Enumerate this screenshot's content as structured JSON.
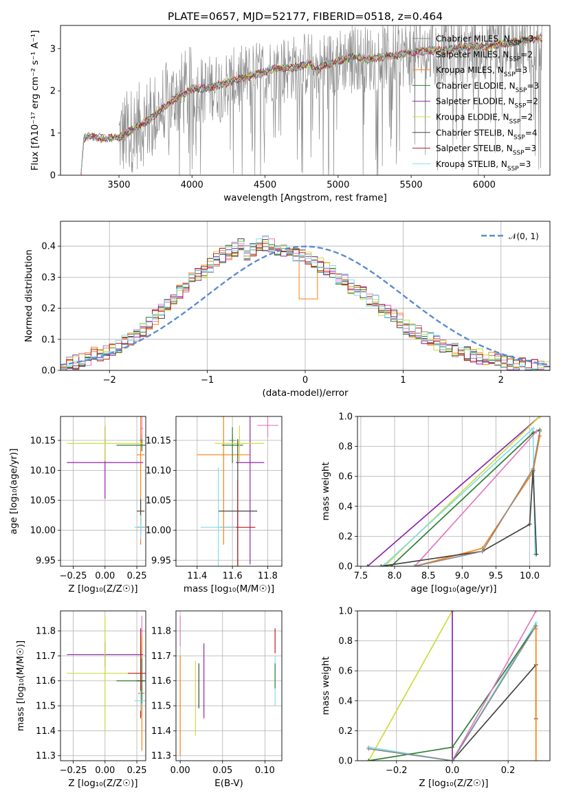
{
  "colors": {
    "chabrier_miles": "#8c8c8c",
    "salpeter_miles": "#e377c2",
    "kroupa_miles": "#ff7f0e",
    "chabrier_elodie": "#2e7d32",
    "salpeter_elodie": "#8e24aa",
    "kroupa_elodie": "#cddc39",
    "chabrier_stelib": "#424242",
    "salpeter_stelib": "#b71c1c",
    "kroupa_stelib": "#80deea",
    "normal": "#5b8bd0"
  },
  "chart_data": [
    {
      "type": "line",
      "id": "spectrum",
      "title": "PLATE=0657, MJD=52177, FIBERID=0518, z=0.464",
      "xlabel": "wavelength [Angstrom, rest frame]",
      "ylabel": "Flux [fλ10⁻¹⁷ erg cm⁻² s⁻¹ A⁻¹]",
      "xlim": [
        3100,
        6450
      ],
      "ylim": [
        0,
        3.55
      ],
      "xticks": [
        "3500",
        "4000",
        "4500",
        "5000",
        "5500",
        "6000"
      ],
      "yticks": [
        "0",
        "1",
        "2",
        "3"
      ],
      "legend_position": "upper-right",
      "legend": [
        {
          "key": "chabrier_miles",
          "name": "Chabrier MILES, N",
          "sub": "SSP",
          "tail": "=3"
        },
        {
          "key": "salpeter_miles",
          "name": "Salpeter MILES, N",
          "sub": "SSP",
          "tail": "=2"
        },
        {
          "key": "kroupa_miles",
          "name": "Kroupa MILES, N",
          "sub": "SSP",
          "tail": "=3"
        },
        {
          "key": "chabrier_elodie",
          "name": "Chabrier ELODIE, N",
          "sub": "SSP",
          "tail": "=3"
        },
        {
          "key": "salpeter_elodie",
          "name": "Salpeter ELODIE, N",
          "sub": "SSP",
          "tail": "=2"
        },
        {
          "key": "kroupa_elodie",
          "name": "Kroupa ELODIE, N",
          "sub": "SSP",
          "tail": "=2"
        },
        {
          "key": "chabrier_stelib",
          "name": "Chabrier STELIB, N",
          "sub": "SSP",
          "tail": "=4"
        },
        {
          "key": "salpeter_stelib",
          "name": "Salpeter STELIB, N",
          "sub": "SSP",
          "tail": "=3"
        },
        {
          "key": "kroupa_stelib",
          "name": "Kroupa STELIB, N",
          "sub": "SSP",
          "tail": "=3"
        }
      ],
      "model_continuum": {
        "x": [
          3240,
          3260,
          3300,
          3350,
          3400,
          3450,
          3500,
          3600,
          3700,
          3800,
          3900,
          3950,
          4000,
          4100,
          4200,
          4300,
          4400,
          4500,
          4600,
          4700,
          4800,
          4860,
          4900,
          5000,
          5100,
          5200,
          5300,
          5400,
          5500,
          5600,
          5700,
          5800,
          5900,
          6000,
          6100,
          6200,
          6300,
          6400
        ],
        "y": [
          0.05,
          0.88,
          0.92,
          0.9,
          0.86,
          0.88,
          0.9,
          1.1,
          1.3,
          1.6,
          1.85,
          1.95,
          2.05,
          2.05,
          2.15,
          2.25,
          2.35,
          2.45,
          2.55,
          2.55,
          2.65,
          2.5,
          2.6,
          2.7,
          2.8,
          2.75,
          2.8,
          2.85,
          2.9,
          2.95,
          2.95,
          3.0,
          3.05,
          3.05,
          3.1,
          3.15,
          3.2,
          3.25
        ]
      },
      "observed_range": [
        3500,
        6400
      ]
    },
    {
      "type": "line",
      "id": "residuals",
      "xlabel": "(data-model)/error",
      "ylabel": "Normed distribution",
      "xlim": [
        -2.5,
        2.5
      ],
      "ylim": [
        0,
        0.48
      ],
      "xticks": [
        "−2",
        "−1",
        "0",
        "1",
        "2"
      ],
      "yticks": [
        "0.0",
        "0.1",
        "0.2",
        "0.3",
        "0.4"
      ],
      "legend_position": "upper-right",
      "normal_label": "𝒩(0, 1)",
      "bin_width": 0.1,
      "hist_base": [
        0.015,
        0.02,
        0.025,
        0.035,
        0.04,
        0.05,
        0.055,
        0.06,
        0.07,
        0.08,
        0.09,
        0.1,
        0.115,
        0.13,
        0.15,
        0.17,
        0.19,
        0.21,
        0.23,
        0.25,
        0.27,
        0.29,
        0.31,
        0.32,
        0.34,
        0.36,
        0.37,
        0.38,
        0.39,
        0.4,
        0.38,
        0.39,
        0.4,
        0.41,
        0.4,
        0.39,
        0.39,
        0.38,
        0.37,
        0.37,
        0.36,
        0.35,
        0.34,
        0.33,
        0.32,
        0.3,
        0.29,
        0.27,
        0.26,
        0.25,
        0.23,
        0.22,
        0.2,
        0.19,
        0.17,
        0.16,
        0.14,
        0.13,
        0.12,
        0.11,
        0.1,
        0.09,
        0.08,
        0.07,
        0.065,
        0.06,
        0.055,
        0.05,
        0.045,
        0.04,
        0.035,
        0.03,
        0.03,
        0.025,
        0.02,
        0.02,
        0.015,
        0.015,
        0.01,
        0.01
      ]
    },
    {
      "type": "scatter",
      "id": "age_vs_Z",
      "xlabel": "Z [log₁₀(Z/Z☉)]",
      "ylabel": "age  [log₁₀(age/yr)]",
      "xlim": [
        -0.35,
        0.32
      ],
      "ylim": [
        9.94,
        10.19
      ],
      "xticks": [
        "−0.25",
        "0.00",
        "0.25"
      ],
      "yticks": [
        "9.95",
        "10.00",
        "10.05",
        "10.10",
        "10.15"
      ],
      "points": [
        {
          "key": "chabrier_miles",
          "x": 0.28,
          "y": 10.15,
          "xerr": 0.01,
          "yerr": 0.01
        },
        {
          "key": "salpeter_miles",
          "x": 0.29,
          "y": 10.17,
          "xerr": 0.01,
          "yerr": 0.02
        },
        {
          "key": "kroupa_miles",
          "x": 0.28,
          "y": 10.126,
          "xerr": 0.03,
          "yerr": 0.15
        },
        {
          "key": "chabrier_elodie",
          "x": 0.29,
          "y": 10.142,
          "xerr": 0.2,
          "yerr": 0.01
        },
        {
          "key": "salpeter_elodie",
          "x": 0.0,
          "y": 10.113,
          "xerr": 0.3,
          "yerr": 0.06
        },
        {
          "key": "kroupa_elodie",
          "x": 0.0,
          "y": 10.145,
          "xerr": 0.3,
          "yerr": 0.03
        },
        {
          "key": "chabrier_stelib",
          "x": 0.28,
          "y": 10.032,
          "xerr": 0.03,
          "yerr": 0.02
        },
        {
          "key": "salpeter_stelib",
          "x": 0.28,
          "y": 10.005,
          "xerr": 0.03,
          "yerr": 0.01
        },
        {
          "key": "kroupa_stelib",
          "x": 0.28,
          "y": 10.005,
          "xerr": 0.05,
          "yerr": 0.02
        }
      ]
    },
    {
      "type": "scatter",
      "id": "age_vs_mass",
      "xlabel": "mass [log₁₀(M/M☉)]",
      "ylabel": "",
      "xlim": [
        11.28,
        11.88
      ],
      "ylim": [
        9.94,
        10.19
      ],
      "xticks": [
        "11.4",
        "11.6",
        "11.8"
      ],
      "yticks": [
        "9.95",
        "10.00",
        "10.05",
        "10.10",
        "10.15"
      ],
      "points": [
        {
          "key": "chabrier_miles",
          "x": 11.6,
          "y": 10.15,
          "xerr": 0.02,
          "yerr": 0.01
        },
        {
          "key": "salpeter_miles",
          "x": 11.8,
          "y": 10.175,
          "xerr": 0.06,
          "yerr": 0.02
        },
        {
          "key": "kroupa_miles",
          "x": 11.55,
          "y": 10.126,
          "xerr": 0.15,
          "yerr": 0.15
        },
        {
          "key": "chabrier_elodie",
          "x": 11.6,
          "y": 10.142,
          "xerr": 0.06,
          "yerr": 0.03
        },
        {
          "key": "salpeter_elodie",
          "x": 11.7,
          "y": 10.113,
          "xerr": 0.08,
          "yerr": 0.17
        },
        {
          "key": "kroupa_elodie",
          "x": 11.64,
          "y": 10.145,
          "xerr": 0.14,
          "yerr": 0.03
        },
        {
          "key": "chabrier_stelib",
          "x": 11.63,
          "y": 10.032,
          "xerr": 0.11,
          "yerr": 0.12
        },
        {
          "key": "salpeter_stelib",
          "x": 11.63,
          "y": 10.005,
          "xerr": 0.1,
          "yerr": 0.08
        },
        {
          "key": "kroupa_stelib",
          "x": 11.52,
          "y": 10.005,
          "xerr": 0.1,
          "yerr": 0.1
        }
      ]
    },
    {
      "type": "line",
      "id": "weight_vs_age",
      "xlabel": "age  [log₁₀(age/yr)]",
      "ylabel": "mass weight",
      "xlim": [
        7.45,
        10.3
      ],
      "ylim": [
        0,
        1.0
      ],
      "xticks": [
        "7.5",
        "8.0",
        "8.5",
        "9.0",
        "9.5",
        "10.0"
      ],
      "yticks": [
        "0.0",
        "0.2",
        "0.4",
        "0.6",
        "0.8",
        "1.0"
      ],
      "series": [
        {
          "key": "salpeter_elodie",
          "x": [
            7.6,
            10.15
          ],
          "y": [
            0.0,
            1.0
          ]
        },
        {
          "key": "kroupa_elodie",
          "x": [
            7.85,
            10.15
          ],
          "y": [
            0.0,
            1.0
          ]
        },
        {
          "key": "kroupa_stelib",
          "x": [
            7.85,
            10.05,
            10.08
          ],
          "y": [
            0.01,
            0.92,
            0.08
          ]
        },
        {
          "key": "chabrier_elodie",
          "x": [
            7.95,
            10.05,
            10.15
          ],
          "y": [
            0.0,
            0.89,
            0.91
          ]
        },
        {
          "key": "salpeter_miles",
          "x": [
            8.3,
            10.1
          ],
          "y": [
            0.0,
            0.9
          ]
        },
        {
          "key": "kroupa_miles",
          "x": [
            8.3,
            9.3,
            10.05,
            10.15
          ],
          "y": [
            0.0,
            0.12,
            0.63,
            0.87
          ]
        },
        {
          "key": "chabrier_stelib",
          "x": [
            7.8,
            9.3,
            10.0,
            10.05,
            10.1
          ],
          "y": [
            0.0,
            0.1,
            0.28,
            0.64,
            0.08
          ]
        },
        {
          "key": "chabrier_miles",
          "x": [
            8.3,
            9.3,
            10.05,
            10.15
          ],
          "y": [
            0.0,
            0.1,
            0.65,
            0.9
          ]
        }
      ]
    },
    {
      "type": "scatter",
      "id": "mass_vs_Z",
      "xlabel": "Z [log₁₀(Z/Z☉)]",
      "ylabel": "mass [log₁₀(M/M☉)]",
      "xlim": [
        -0.35,
        0.32
      ],
      "ylim": [
        11.28,
        11.88
      ],
      "xticks": [
        "−0.25",
        "0.00",
        "0.25"
      ],
      "yticks": [
        "11.3",
        "11.4",
        "11.5",
        "11.6",
        "11.7",
        "11.8"
      ],
      "points": [
        {
          "key": "chabrier_miles",
          "x": 0.28,
          "y": 11.55,
          "xerr": 0.02,
          "yerr": 0.03
        },
        {
          "key": "salpeter_miles",
          "x": 0.29,
          "y": 11.8,
          "xerr": 0.01,
          "yerr": 0.06
        },
        {
          "key": "kroupa_miles",
          "x": 0.29,
          "y": 11.55,
          "xerr": 0.02,
          "yerr": 0.23
        },
        {
          "key": "chabrier_elodie",
          "x": 0.29,
          "y": 11.6,
          "xerr": 0.2,
          "yerr": 0.09
        },
        {
          "key": "salpeter_elodie",
          "x": 0.0,
          "y": 11.705,
          "xerr": 0.3,
          "yerr": 0.05
        },
        {
          "key": "kroupa_elodie",
          "x": 0.0,
          "y": 11.63,
          "xerr": 0.3,
          "yerr": 0.23
        },
        {
          "key": "chabrier_stelib",
          "x": 0.28,
          "y": 11.6,
          "xerr": 0.03,
          "yerr": 0.14
        },
        {
          "key": "salpeter_stelib",
          "x": 0.28,
          "y": 11.63,
          "xerr": 0.1,
          "yerr": 0.18
        },
        {
          "key": "kroupa_stelib",
          "x": 0.28,
          "y": 11.52,
          "xerr": 0.05,
          "yerr": 0.04
        }
      ]
    },
    {
      "type": "scatter",
      "id": "mass_vs_ebv",
      "xlabel": "E(B-V)",
      "ylabel": "",
      "xlim": [
        -0.005,
        0.12
      ],
      "ylim": [
        11.28,
        11.88
      ],
      "xticks": [
        "0.00",
        "0.05",
        "0.10"
      ],
      "yticks": [
        "11.3",
        "11.4",
        "11.5",
        "11.6",
        "11.7",
        "11.8"
      ],
      "points": [
        {
          "key": "salpeter_miles",
          "x": 0.0,
          "y": 11.8,
          "yerr": 0.06
        },
        {
          "key": "kroupa_miles",
          "x": 0.0,
          "y": 11.5,
          "yerr": 0.2
        },
        {
          "key": "kroupa_elodie",
          "x": 0.018,
          "y": 11.53,
          "yerr": 0.15
        },
        {
          "key": "chabrier_stelib",
          "x": 0.022,
          "y": 11.58,
          "yerr": 0.09
        },
        {
          "key": "salpeter_elodie",
          "x": 0.028,
          "y": 11.6,
          "yerr": 0.15
        },
        {
          "key": "salpeter_stelib",
          "x": 0.112,
          "y": 11.76,
          "yerr": 0.05
        },
        {
          "key": "kroupa_stelib",
          "x": 0.112,
          "y": 11.6,
          "yerr": 0.1
        },
        {
          "key": "chabrier_elodie",
          "x": 0.112,
          "y": 11.62,
          "yerr": 0.05
        }
      ]
    },
    {
      "type": "line",
      "id": "weight_vs_Z",
      "xlabel": "Z [log₁₀(Z/Z☉)]",
      "ylabel": "mass weight",
      "xlim": [
        -0.34,
        0.35
      ],
      "ylim": [
        0,
        1.0
      ],
      "xticks": [
        "−0.2",
        "0.0",
        "0.2"
      ],
      "yticks": [
        "0.0",
        "0.2",
        "0.4",
        "0.6",
        "0.8",
        "1.0"
      ],
      "series": [
        {
          "key": "kroupa_elodie",
          "x": [
            -0.3,
            0.0
          ],
          "y": [
            0.0,
            1.0
          ]
        },
        {
          "key": "salpeter_elodie",
          "x": [
            0.0,
            0.0
          ],
          "y": [
            0.0,
            1.0
          ]
        },
        {
          "key": "kroupa_stelib",
          "x": [
            -0.3,
            0.0,
            0.3
          ],
          "y": [
            0.09,
            0.0,
            0.92
          ]
        },
        {
          "key": "chabrier_elodie",
          "x": [
            -0.3,
            0.0,
            0.3
          ],
          "y": [
            0.0,
            0.09,
            0.9
          ]
        },
        {
          "key": "salpeter_miles",
          "x": [
            0.0,
            0.3
          ],
          "y": [
            0.0,
            1.0
          ]
        },
        {
          "key": "chabrier_stelib",
          "x": [
            0.0,
            0.3,
            0.3
          ],
          "y": [
            0.0,
            0.64,
            0.28
          ]
        },
        {
          "key": "kroupa_miles",
          "x": [
            0.3,
            0.3
          ],
          "y": [
            0.0,
            0.88
          ]
        },
        {
          "key": "chabrier_miles",
          "x": [
            -0.3,
            0.0,
            0.3
          ],
          "y": [
            0.08,
            0.0,
            0.9
          ]
        }
      ]
    }
  ]
}
